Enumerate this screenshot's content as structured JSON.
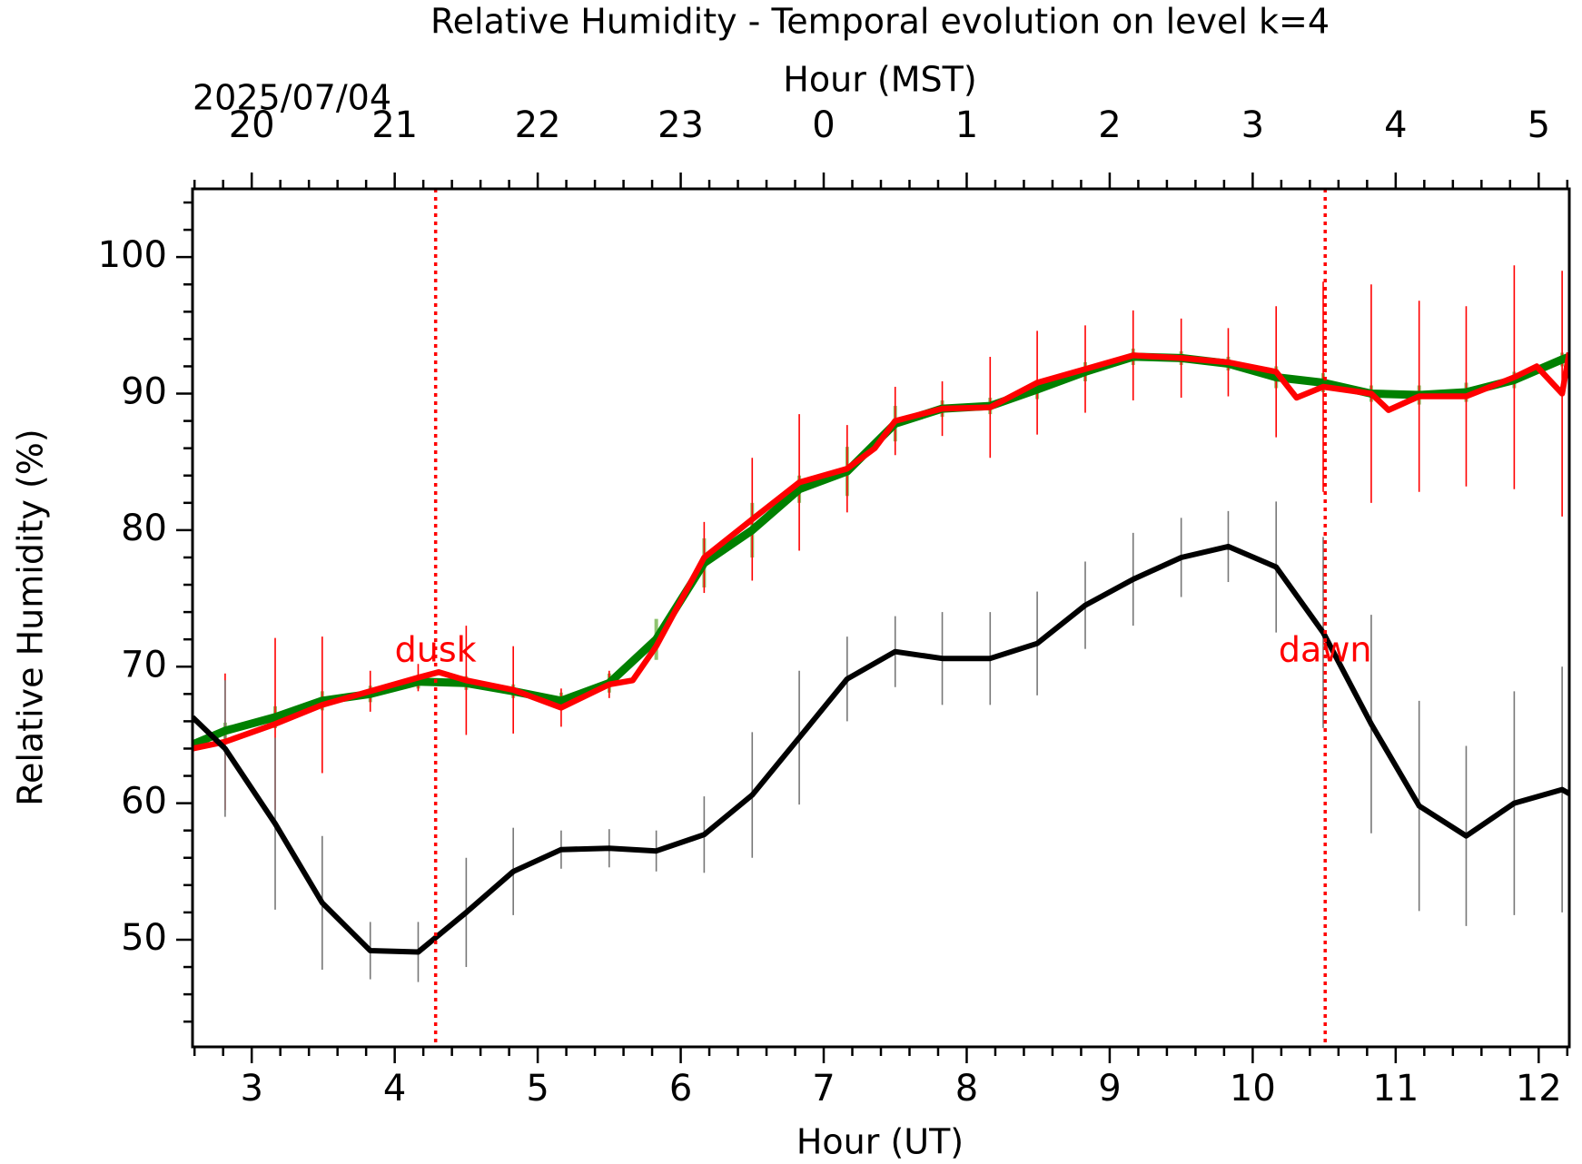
{
  "chart_data": {
    "type": "line",
    "title": "Relative Humidity - Temporal evolution on level k=4",
    "xlabel": "Hour (UT)",
    "x2label": "Hour (MST)",
    "ylabel": "Relative Humidity (%)",
    "date_label": "2025/07/04",
    "xlim": [
      2.586,
      12.214
    ],
    "ylim": [
      42.15,
      105
    ],
    "xticks": [
      3,
      4,
      5,
      6,
      7,
      8,
      9,
      10,
      11,
      12
    ],
    "x2ticks": [
      {
        "value": 3,
        "label": "20"
      },
      {
        "value": 4,
        "label": "21"
      },
      {
        "value": 5,
        "label": "22"
      },
      {
        "value": 6,
        "label": "23"
      },
      {
        "value": 7,
        "label": "0"
      },
      {
        "value": 8,
        "label": "1"
      },
      {
        "value": 9,
        "label": "2"
      },
      {
        "value": 10,
        "label": "3"
      },
      {
        "value": 11,
        "label": "4"
      },
      {
        "value": 12,
        "label": "5"
      }
    ],
    "xticks_minor": [
      2.6,
      2.8,
      3.2,
      3.4,
      3.6,
      3.8,
      4.2,
      4.4,
      4.6,
      4.8,
      5.2,
      5.4,
      5.6,
      5.8,
      6.2,
      6.4,
      6.6,
      6.8,
      7.2,
      7.4,
      7.6,
      7.8,
      8.2,
      8.4,
      8.6,
      8.8,
      9.2,
      9.4,
      9.6,
      9.8,
      10.2,
      10.4,
      10.6,
      10.8,
      11.2,
      11.4,
      11.6,
      11.8,
      12.2
    ],
    "yticks": [
      50,
      60,
      70,
      80,
      90,
      100
    ],
    "yticks_minor": [
      44,
      46,
      48,
      52,
      54,
      56,
      58,
      62,
      64,
      66,
      68,
      72,
      74,
      76,
      78,
      82,
      84,
      86,
      88,
      92,
      94,
      96,
      98,
      102,
      104
    ],
    "vlines": [
      {
        "x": 4.286,
        "label": "dusk",
        "color": "#ff0000"
      },
      {
        "x": 10.507,
        "label": "dawn",
        "color": "#ff0000"
      }
    ],
    "series": [
      {
        "color": "#008000",
        "error_color": "#8fc36f",
        "x": [
          2.586,
          2.814,
          3.164,
          3.493,
          3.829,
          4.164,
          4.5,
          4.829,
          5.164,
          5.5,
          5.829,
          6.164,
          6.5,
          6.829,
          7.164,
          7.5,
          7.829,
          8.164,
          8.493,
          8.829,
          9.164,
          9.5,
          9.829,
          10.164,
          10.493,
          10.829,
          11.164,
          11.493,
          11.829,
          12.164,
          12.214
        ],
        "values": [
          64.3,
          65.3,
          66.3,
          67.5,
          68,
          68.9,
          68.8,
          68.2,
          67.5,
          68.8,
          72,
          77.6,
          80,
          83,
          84.3,
          87.8,
          88.9,
          89.1,
          90.3,
          91.6,
          92.7,
          92.6,
          92.2,
          91.2,
          90.8,
          90,
          89.9,
          90.1,
          91,
          92.5,
          92.7
        ],
        "errors": [
          null,
          0.6,
          0.8,
          0.7,
          0.6,
          0.5,
          0.5,
          0.5,
          0.6,
          0.7,
          1.5,
          1.8,
          2,
          1,
          1.8,
          1.3,
          0.6,
          0.6,
          0.7,
          0.7,
          0.6,
          0.5,
          0.5,
          0.8,
          0.7,
          0.6,
          0.7,
          0.7,
          0.6,
          0.5,
          null
        ]
      },
      {
        "color": "#ff0000",
        "error_color": "#ff0000",
        "x": [
          2.586,
          2.814,
          3.164,
          3.493,
          3.829,
          4.164,
          4.307,
          4.5,
          4.829,
          5.164,
          5.5,
          5.664,
          5.829,
          6.164,
          6.5,
          6.829,
          7.164,
          7.357,
          7.5,
          7.829,
          8.164,
          8.493,
          8.829,
          9.164,
          9.5,
          9.829,
          10.164,
          10.307,
          10.493,
          10.829,
          10.95,
          11.164,
          11.493,
          11.829,
          11.986,
          12.164,
          12.214
        ],
        "values": [
          64,
          64.5,
          65.8,
          67.2,
          68.2,
          69.2,
          69.6,
          69,
          68.3,
          67,
          68.7,
          69,
          71.5,
          78,
          80.8,
          83.5,
          84.5,
          86,
          88,
          88.9,
          89,
          90.8,
          91.8,
          92.8,
          92.6,
          92.3,
          91.6,
          89.7,
          90.5,
          90,
          88.8,
          89.8,
          89.8,
          91.2,
          92,
          90,
          93
        ],
        "errors": [
          null,
          5,
          6.3,
          5,
          1.5,
          1,
          null,
          4,
          3.2,
          1.4,
          1,
          null,
          null,
          2.6,
          4.5,
          5,
          3.2,
          null,
          2.5,
          2,
          3.7,
          3.8,
          3.2,
          3.3,
          2.9,
          2.5,
          4.8,
          null,
          7.7,
          8,
          null,
          7,
          6.6,
          8.2,
          null,
          9,
          null
        ]
      },
      {
        "color": "#000000",
        "error_color": "#777777",
        "x": [
          2.586,
          2.814,
          3.164,
          3.493,
          3.829,
          4.164,
          4.5,
          4.829,
          5.164,
          5.5,
          5.829,
          6.164,
          6.5,
          6.829,
          7.164,
          7.5,
          7.829,
          8.164,
          8.493,
          8.829,
          9.164,
          9.5,
          9.829,
          10.164,
          10.493,
          10.829,
          11.164,
          11.493,
          11.829,
          12.164,
          12.214
        ],
        "values": [
          66.3,
          64,
          58.5,
          52.7,
          49.2,
          49.1,
          52,
          55,
          56.6,
          56.7,
          56.5,
          57.7,
          60.6,
          64.8,
          69.1,
          71.1,
          70.6,
          70.6,
          71.7,
          74.5,
          76.4,
          78,
          78.8,
          77.3,
          72.5,
          65.8,
          59.8,
          57.6,
          60,
          61,
          60.7
        ],
        "errors": [
          null,
          5,
          6.3,
          4.9,
          2.1,
          2.2,
          4,
          3.2,
          1.4,
          1.4,
          1.5,
          2.8,
          4.6,
          4.9,
          3.1,
          2.6,
          3.4,
          3.4,
          3.8,
          3.2,
          3.4,
          2.9,
          2.6,
          4.8,
          7,
          8,
          7.7,
          6.6,
          8.2,
          9,
          null
        ]
      }
    ]
  }
}
